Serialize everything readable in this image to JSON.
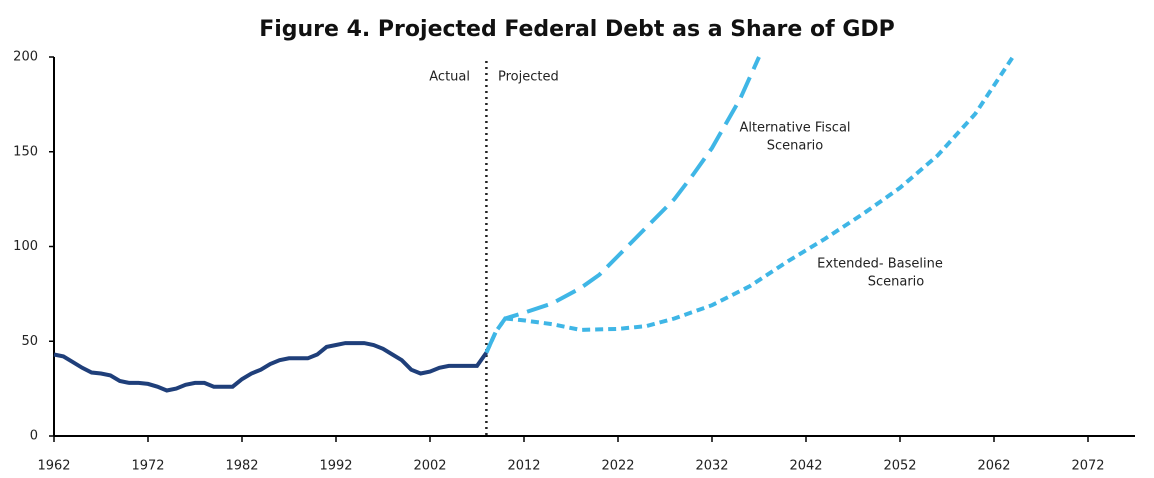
{
  "chart_data": {
    "type": "line",
    "title": "Figure 4. Projected Federal Debt as a Share of GDP",
    "annotations": [
      "Actual",
      "Projected",
      "Alternative Fiscal",
      "Scenario",
      "Extended- Baseline",
      "Scenario"
    ],
    "xlim": [
      1962,
      2077
    ],
    "xticks": [
      1962,
      1972,
      1982,
      1992,
      2002,
      2012,
      2022,
      2032,
      2042,
      2052,
      2062,
      2072
    ],
    "ylim": [
      0,
      200
    ],
    "yticks": [
      0,
      50,
      100,
      150,
      200
    ],
    "series": [
      {
        "name": "Actual",
        "color": "#1f3f7a",
        "style": "solid",
        "x": [
          1962,
          1963,
          1964,
          1965,
          1966,
          1967,
          1968,
          1969,
          1970,
          1971,
          1972,
          1973,
          1974,
          1975,
          1976,
          1977,
          1978,
          1979,
          1980,
          1981,
          1982,
          1983,
          1984,
          1985,
          1986,
          1987,
          1988,
          1989,
          1990,
          1991,
          1992,
          1993,
          1994,
          1995,
          1996,
          1997,
          1998,
          1999,
          2000,
          2001,
          2002,
          2003,
          2004,
          2005,
          2006,
          2007,
          2008
        ],
        "values": [
          43,
          42,
          39,
          36,
          33.5,
          33,
          32,
          29,
          28,
          28,
          27.5,
          26,
          24,
          25,
          27,
          28,
          28,
          26,
          26,
          26,
          30,
          33,
          35,
          38,
          40,
          41,
          41,
          41,
          43,
          47,
          48,
          49,
          49,
          49,
          48,
          46,
          43,
          40,
          35,
          33,
          34,
          36,
          37,
          37,
          37,
          37,
          44
        ]
      },
      {
        "name": "Alternative Fiscal Scenario",
        "color": "#3fb6e6",
        "style": "long-dash",
        "x": [
          2008,
          2009,
          2010,
          2012,
          2015,
          2018,
          2020,
          2022,
          2025,
          2028,
          2030,
          2032,
          2035,
          2037
        ],
        "values": [
          44,
          55,
          62,
          65,
          70,
          78,
          85,
          95,
          110,
          125,
          138,
          152,
          178,
          200
        ]
      },
      {
        "name": "Extended-Baseline Scenario",
        "color": "#3fb6e6",
        "style": "short-dash",
        "x": [
          2008,
          2009,
          2010,
          2012,
          2015,
          2018,
          2022,
          2025,
          2028,
          2032,
          2036,
          2040,
          2044,
          2048,
          2052,
          2056,
          2060,
          2064
        ],
        "values": [
          44,
          55,
          62,
          61,
          59,
          56,
          56.5,
          58,
          62,
          69,
          79,
          92,
          104,
          117,
          131,
          148,
          170,
          200
        ]
      }
    ]
  }
}
